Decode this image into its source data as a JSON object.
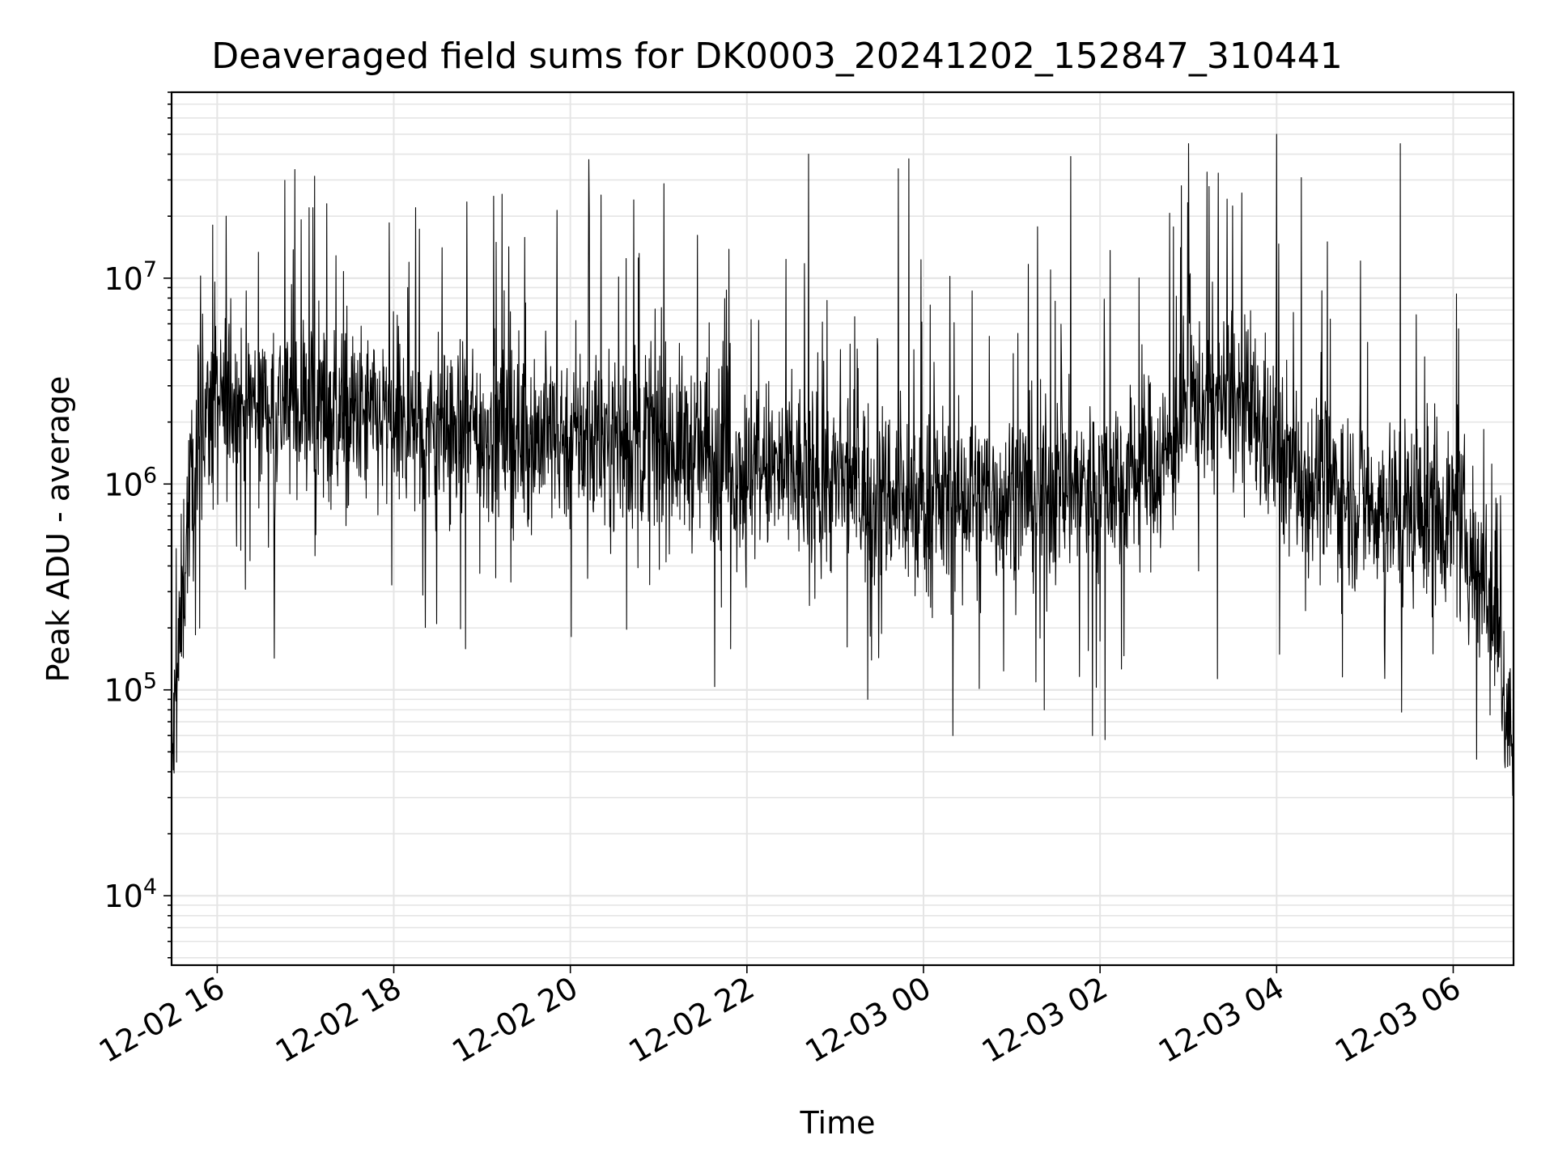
{
  "chart_data": {
    "type": "line",
    "title": "Deaveraged field sums for DK0003_20241202_152847_310441",
    "xlabel": "Time",
    "ylabel": "Peak ADU - average",
    "yscale": "log",
    "x_start": "12-02 15:29",
    "x_end": "12-03 06:41",
    "xlim": [
      "12-02 15:29",
      "12-03 06:41"
    ],
    "ylim": [
      4600,
      80000000
    ],
    "grid": true,
    "line_color": "#000000",
    "grid_color": "#e5e5e5",
    "x_ticks": [
      "12-02 16",
      "12-02 18",
      "12-02 20",
      "12-02 22",
      "12-03 00",
      "12-03 02",
      "12-03 04",
      "12-03 06"
    ],
    "y_ticks": [
      {
        "value": 10000,
        "base": "10",
        "exp": "4"
      },
      {
        "value": 100000,
        "base": "10",
        "exp": "5"
      },
      {
        "value": 1000000,
        "base": "10",
        "exp": "6"
      },
      {
        "value": 10000000,
        "base": "10",
        "exp": "7"
      }
    ],
    "baseline": [
      {
        "t": "12-02 15:29",
        "y": 40000
      },
      {
        "t": "12-02 15:34",
        "y": 150000
      },
      {
        "t": "12-02 15:40",
        "y": 700000
      },
      {
        "t": "12-02 15:50",
        "y": 2000000
      },
      {
        "t": "12-02 16:10",
        "y": 2500000
      },
      {
        "t": "12-02 17:00",
        "y": 2400000
      },
      {
        "t": "12-02 18:00",
        "y": 1900000
      },
      {
        "t": "12-02 19:00",
        "y": 1800000
      },
      {
        "t": "12-02 20:00",
        "y": 1700000
      },
      {
        "t": "12-02 21:00",
        "y": 1600000
      },
      {
        "t": "12-02 22:00",
        "y": 1200000
      },
      {
        "t": "12-02 23:00",
        "y": 1000000
      },
      {
        "t": "12-03 00:00",
        "y": 800000
      },
      {
        "t": "12-03 01:00",
        "y": 900000
      },
      {
        "t": "12-03 02:00",
        "y": 1000000
      },
      {
        "t": "12-03 02:45",
        "y": 1300000
      },
      {
        "t": "12-03 03:00",
        "y": 2500000
      },
      {
        "t": "12-03 03:30",
        "y": 2500000
      },
      {
        "t": "12-03 03:50",
        "y": 1800000
      },
      {
        "t": "12-03 04:10",
        "y": 1200000
      },
      {
        "t": "12-03 05:00",
        "y": 800000
      },
      {
        "t": "12-03 06:00",
        "y": 700000
      },
      {
        "t": "12-03 06:25",
        "y": 300000
      },
      {
        "t": "12-03 06:35",
        "y": 100000
      },
      {
        "t": "12-03 06:41",
        "y": 50000
      }
    ],
    "peaks": [
      {
        "t": "12-02 16:06",
        "y": 20000000
      },
      {
        "t": "12-02 17:05",
        "y": 22000000
      },
      {
        "t": "12-02 18:15",
        "y": 22000000
      },
      {
        "t": "12-02 19:08",
        "y": 25000000
      },
      {
        "t": "12-02 20:13",
        "y": 20000000
      },
      {
        "t": "12-02 20:43",
        "y": 24000000
      },
      {
        "t": "12-02 22:42",
        "y": 40000000
      },
      {
        "t": "12-02 23:43",
        "y": 34000000
      },
      {
        "t": "12-02 23:50",
        "y": 38000000
      },
      {
        "t": "12-03 01:40",
        "y": 39000000
      },
      {
        "t": "12-03 03:00",
        "y": 45000000
      },
      {
        "t": "12-03 04:00",
        "y": 50000000
      },
      {
        "t": "12-03 05:24",
        "y": 45000000
      }
    ],
    "troughs": [
      {
        "t": "12-03 00:20",
        "y": 60000
      },
      {
        "t": "12-03 01:55",
        "y": 60000
      },
      {
        "t": "12-03 01:22",
        "y": 80000
      },
      {
        "t": "12-02 23:22",
        "y": 90000
      },
      {
        "t": "12-03 05:25",
        "y": 78000
      },
      {
        "t": "12-03 06:35",
        "y": 45000
      }
    ]
  }
}
